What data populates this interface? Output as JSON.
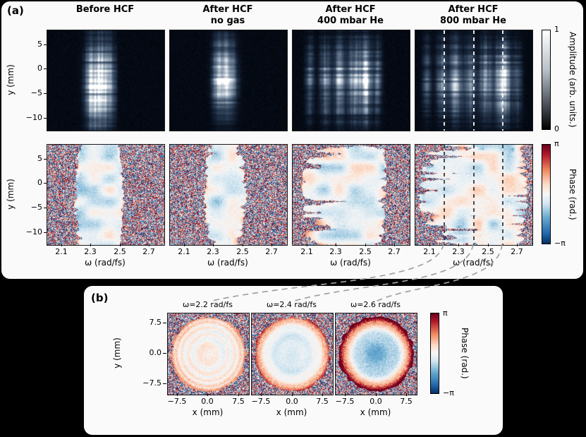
{
  "panel_a": {
    "label": "(a)",
    "columns": [
      {
        "title_line1": "Before HCF",
        "title_line2": ""
      },
      {
        "title_line1": "After HCF",
        "title_line2": "no gas"
      },
      {
        "title_line1": "After HCF",
        "title_line2": "400 mbar He"
      },
      {
        "title_line1": "After HCF",
        "title_line2": "800 mbar He"
      }
    ],
    "y_axis_label": "y (mm)",
    "y_ticks": [
      "5",
      "0",
      "−5",
      "−10"
    ],
    "x_axis_label": "ω (rad/fs)",
    "x_ticks": [
      "2.1",
      "2.3",
      "2.5",
      "2.7"
    ],
    "amplitude_colorbar": {
      "label": "Amplitude (arb. units.)",
      "tick_top": "1",
      "tick_bottom": "0"
    },
    "phase_colorbar": {
      "label": "Phase (rad.)",
      "tick_top": "π",
      "tick_bottom": "−π"
    }
  },
  "panel_b": {
    "label": "(b)",
    "plots": [
      {
        "title": "ω=2.2 rad/fs"
      },
      {
        "title": "ω=2.4 rad/fs"
      },
      {
        "title": "ω=2.6 rad/fs"
      }
    ],
    "y_axis_label": "y (mm)",
    "y_ticks": [
      "7.5",
      "0.0",
      "−7.5"
    ],
    "x_axis_label": "x (mm)",
    "x_ticks": [
      "−7.5",
      "0.0",
      "7.5"
    ],
    "phase_colorbar": {
      "label": "Phase (rad.)",
      "tick_top": "π",
      "tick_bottom": "−π"
    }
  },
  "chart_data": [
    {
      "id": "a-amplitude-before-hcf",
      "type": "heatmap",
      "panel": "a",
      "row": "amplitude",
      "column_title": "Before HCF",
      "x_label": "ω (rad/fs)",
      "x_range": [
        2.0,
        2.8
      ],
      "y_label": "y (mm)",
      "y_range": [
        -12.5,
        8
      ],
      "z_label": "Amplitude (arb. units.)",
      "z_range": [
        0,
        1
      ],
      "render": {
        "kind": "amplitude",
        "seed": 11,
        "y_center": -3,
        "y_sigma": 5.5,
        "peaks": [
          {
            "omega": 2.3,
            "sigma": 0.03,
            "amp": 0.75
          },
          {
            "omega": 2.37,
            "sigma": 0.035,
            "amp": 1.0
          },
          {
            "omega": 2.44,
            "sigma": 0.022,
            "amp": 0.45
          }
        ]
      }
    },
    {
      "id": "a-amplitude-after-hcf-no-gas",
      "type": "heatmap",
      "panel": "a",
      "row": "amplitude",
      "column_title": "After HCF no gas",
      "x_label": "ω (rad/fs)",
      "x_range": [
        2.0,
        2.8
      ],
      "y_label": "y (mm)",
      "y_range": [
        -12.5,
        8
      ],
      "z_label": "Amplitude (arb. units.)",
      "z_range": [
        0,
        1
      ],
      "render": {
        "kind": "amplitude",
        "seed": 12,
        "y_center": -1.5,
        "y_sigma": 4.5,
        "peaks": [
          {
            "omega": 2.33,
            "sigma": 0.028,
            "amp": 0.7
          },
          {
            "omega": 2.4,
            "sigma": 0.034,
            "amp": 1.0
          }
        ]
      }
    },
    {
      "id": "a-amplitude-after-hcf-400mbar",
      "type": "heatmap",
      "panel": "a",
      "row": "amplitude",
      "column_title": "After HCF 400 mbar He",
      "x_label": "ω (rad/fs)",
      "x_range": [
        2.0,
        2.8
      ],
      "y_label": "y (mm)",
      "y_range": [
        -12.5,
        8
      ],
      "z_label": "Amplitude (arb. units.)",
      "z_range": [
        0,
        1
      ],
      "render": {
        "kind": "amplitude",
        "seed": 13,
        "y_center": -2,
        "y_sigma": 5,
        "peaks": [
          {
            "omega": 2.12,
            "sigma": 0.02,
            "amp": 0.35
          },
          {
            "omega": 2.22,
            "sigma": 0.025,
            "amp": 0.5
          },
          {
            "omega": 2.32,
            "sigma": 0.03,
            "amp": 0.6
          },
          {
            "omega": 2.42,
            "sigma": 0.028,
            "amp": 0.7
          },
          {
            "omega": 2.5,
            "sigma": 0.026,
            "amp": 1.0
          },
          {
            "omega": 2.58,
            "sigma": 0.02,
            "amp": 0.4
          }
        ]
      }
    },
    {
      "id": "a-amplitude-after-hcf-800mbar",
      "type": "heatmap",
      "panel": "a",
      "row": "amplitude",
      "column_title": "After HCF 800 mbar He",
      "x_label": "ω (rad/fs)",
      "x_range": [
        2.0,
        2.8
      ],
      "y_label": "y (mm)",
      "y_range": [
        -12.5,
        8
      ],
      "z_label": "Amplitude (arb. units.)",
      "z_range": [
        0,
        1
      ],
      "marker_omegas": [
        2.2,
        2.4,
        2.6
      ],
      "render": {
        "kind": "amplitude",
        "seed": 14,
        "y_center": -2,
        "y_sigma": 5,
        "peaks": [
          {
            "omega": 2.08,
            "sigma": 0.02,
            "amp": 0.3
          },
          {
            "omega": 2.18,
            "sigma": 0.024,
            "amp": 0.45
          },
          {
            "omega": 2.28,
            "sigma": 0.03,
            "amp": 0.65
          },
          {
            "omega": 2.38,
            "sigma": 0.026,
            "amp": 0.5
          },
          {
            "omega": 2.48,
            "sigma": 0.028,
            "amp": 0.6
          },
          {
            "omega": 2.6,
            "sigma": 0.034,
            "amp": 1.0
          },
          {
            "omega": 2.7,
            "sigma": 0.02,
            "amp": 0.3
          }
        ]
      }
    },
    {
      "id": "a-phase-before-hcf",
      "type": "heatmap",
      "panel": "a",
      "row": "phase",
      "column_title": "Before HCF",
      "x_label": "ω (rad/fs)",
      "x_range": [
        2.0,
        2.8
      ],
      "y_label": "y (mm)",
      "y_range": [
        -12.5,
        8
      ],
      "z_label": "Phase (rad.)",
      "z_range": [
        -3.1416,
        3.1416
      ],
      "render": {
        "kind": "phase",
        "seed": 21,
        "y_center": -3,
        "y_sigma": 5.5,
        "finger": 0.35,
        "bias": -0.3,
        "peaks": [
          {
            "omega": 2.3,
            "sigma": 0.03,
            "amp": 0.75
          },
          {
            "omega": 2.37,
            "sigma": 0.035,
            "amp": 1.0
          },
          {
            "omega": 2.44,
            "sigma": 0.022,
            "amp": 0.45
          }
        ]
      }
    },
    {
      "id": "a-phase-after-hcf-no-gas",
      "type": "heatmap",
      "panel": "a",
      "row": "phase",
      "column_title": "After HCF no gas",
      "x_label": "ω (rad/fs)",
      "x_range": [
        2.0,
        2.8
      ],
      "y_label": "y (mm)",
      "y_range": [
        -12.5,
        8
      ],
      "z_label": "Phase (rad.)",
      "z_range": [
        -3.1416,
        3.1416
      ],
      "render": {
        "kind": "phase",
        "seed": 22,
        "y_center": -1.5,
        "y_sigma": 4.5,
        "finger": 0.5,
        "bias": -0.25,
        "peaks": [
          {
            "omega": 2.33,
            "sigma": 0.028,
            "amp": 0.7
          },
          {
            "omega": 2.4,
            "sigma": 0.034,
            "amp": 1.0
          }
        ]
      }
    },
    {
      "id": "a-phase-after-hcf-400mbar",
      "type": "heatmap",
      "panel": "a",
      "row": "phase",
      "column_title": "After HCF 400 mbar He",
      "x_label": "ω (rad/fs)",
      "x_range": [
        2.0,
        2.8
      ],
      "y_label": "y (mm)",
      "y_range": [
        -12.5,
        8
      ],
      "z_label": "Phase (rad.)",
      "z_range": [
        -3.1416,
        3.1416
      ],
      "render": {
        "kind": "phase",
        "seed": 23,
        "y_center": -2,
        "y_sigma": 5,
        "finger": 0.85,
        "bias": -0.1,
        "peaks": [
          {
            "omega": 2.12,
            "sigma": 0.02,
            "amp": 0.35
          },
          {
            "omega": 2.22,
            "sigma": 0.025,
            "amp": 0.5
          },
          {
            "omega": 2.32,
            "sigma": 0.03,
            "amp": 0.6
          },
          {
            "omega": 2.42,
            "sigma": 0.028,
            "amp": 0.7
          },
          {
            "omega": 2.5,
            "sigma": 0.026,
            "amp": 1.0
          },
          {
            "omega": 2.58,
            "sigma": 0.02,
            "amp": 0.4
          }
        ]
      }
    },
    {
      "id": "a-phase-after-hcf-800mbar",
      "type": "heatmap",
      "panel": "a",
      "row": "phase",
      "column_title": "After HCF 800 mbar He",
      "x_label": "ω (rad/fs)",
      "x_range": [
        2.0,
        2.8
      ],
      "y_label": "y (mm)",
      "y_range": [
        -12.5,
        8
      ],
      "z_label": "Phase (rad.)",
      "z_range": [
        -3.1416,
        3.1416
      ],
      "marker_omegas": [
        2.2,
        2.4,
        2.6
      ],
      "render": {
        "kind": "phase",
        "seed": 24,
        "y_center": -2,
        "y_sigma": 5,
        "finger": 0.9,
        "bias": -0.1,
        "peaks": [
          {
            "omega": 2.08,
            "sigma": 0.02,
            "amp": 0.3
          },
          {
            "omega": 2.18,
            "sigma": 0.024,
            "amp": 0.45
          },
          {
            "omega": 2.28,
            "sigma": 0.03,
            "amp": 0.65
          },
          {
            "omega": 2.38,
            "sigma": 0.026,
            "amp": 0.5
          },
          {
            "omega": 2.48,
            "sigma": 0.028,
            "amp": 0.6
          },
          {
            "omega": 2.6,
            "sigma": 0.034,
            "amp": 1.0
          },
          {
            "omega": 2.7,
            "sigma": 0.02,
            "amp": 0.3
          }
        ]
      }
    },
    {
      "id": "b-phase-2.2",
      "type": "heatmap",
      "panel": "b",
      "title": "ω=2.2 rad/fs",
      "omega_rad_fs": 2.2,
      "x_label": "x (mm)",
      "x_range": [
        -10.4,
        10.4
      ],
      "y_label": "y (mm)",
      "y_range": [
        -10.4,
        10.4
      ],
      "z_label": "Phase (rad.)",
      "z_range": [
        -3.1416,
        3.1416
      ],
      "beam_radius_mm": 9.55,
      "render": {
        "kind": "beam",
        "seed": 41,
        "a0": 0.05,
        "a1": 0.15,
        "a2": 0.85,
        "ring_amp": 0.22,
        "ring_freq": 28,
        "noise": 0.5,
        "rim": 0.5
      }
    },
    {
      "id": "b-phase-2.4",
      "type": "heatmap",
      "panel": "b",
      "title": "ω=2.4 rad/fs",
      "omega_rad_fs": 2.4,
      "x_label": "x (mm)",
      "x_range": [
        -10.4,
        10.4
      ],
      "y_label": "y (mm)",
      "y_range": [
        -10.4,
        10.4
      ],
      "z_label": "Phase (rad.)",
      "z_range": [
        -3.1416,
        3.1416
      ],
      "beam_radius_mm": 9.55,
      "render": {
        "kind": "beam",
        "seed": 42,
        "a0": -0.55,
        "a1": 0.8,
        "a2": 1.7,
        "ring_amp": 0.12,
        "ring_freq": 20,
        "noise": 0.4,
        "rim": 0.9
      }
    },
    {
      "id": "b-phase-2.6",
      "type": "heatmap",
      "panel": "b",
      "title": "ω=2.6 rad/fs",
      "omega_rad_fs": 2.6,
      "x_label": "x (mm)",
      "x_range": [
        -10.4,
        10.4
      ],
      "y_label": "y (mm)",
      "y_range": [
        -10.4,
        10.4
      ],
      "z_label": "Phase (rad.)",
      "z_range": [
        -3.1416,
        3.1416
      ],
      "beam_radius_mm": 9.55,
      "render": {
        "kind": "beam",
        "seed": 43,
        "a0": -1.25,
        "a1": 2.2,
        "a2": 3.2,
        "ring_amp": 0.15,
        "ring_freq": 14,
        "noise": 0.6,
        "rim": 1.6
      }
    }
  ]
}
